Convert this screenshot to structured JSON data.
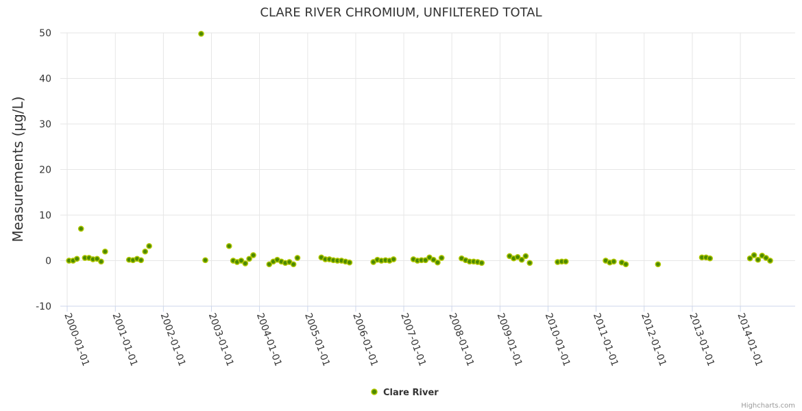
{
  "chart_data": {
    "type": "scatter",
    "title": "CLARE RIVER CHROMIUM, UNFILTERED TOTAL",
    "xlabel": "",
    "ylabel": "Measurements (µg/L)",
    "ylim": [
      -10,
      50
    ],
    "yticks": [
      50,
      40,
      30,
      20,
      10,
      0,
      -10
    ],
    "xlim": [
      "2000-01-01",
      "2014-12-31"
    ],
    "xticks": [
      "2000-01-01",
      "2001-01-01",
      "2002-01-01",
      "2003-01-01",
      "2004-01-01",
      "2005-01-01",
      "2006-01-01",
      "2007-01-01",
      "2008-01-01",
      "2009-01-01",
      "2010-01-01",
      "2011-01-01",
      "2012-01-01",
      "2013-01-01",
      "2014-01-01"
    ],
    "grid": true,
    "legend_position": "bottom-center",
    "series": [
      {
        "name": "Clare River",
        "color": "#4d8a00",
        "points": [
          {
            "x": "2000-01-15",
            "y": 0
          },
          {
            "x": "2000-02-15",
            "y": 0
          },
          {
            "x": "2000-03-15",
            "y": 0.4
          },
          {
            "x": "2000-04-15",
            "y": 7
          },
          {
            "x": "2000-05-15",
            "y": 0.6
          },
          {
            "x": "2000-06-15",
            "y": 0.6
          },
          {
            "x": "2000-07-15",
            "y": 0.3
          },
          {
            "x": "2000-08-15",
            "y": 0.4
          },
          {
            "x": "2000-09-15",
            "y": -0.2
          },
          {
            "x": "2000-10-15",
            "y": 2
          },
          {
            "x": "2001-04-15",
            "y": 0.2
          },
          {
            "x": "2001-05-15",
            "y": 0.1
          },
          {
            "x": "2001-06-15",
            "y": 0.4
          },
          {
            "x": "2001-07-15",
            "y": 0.1
          },
          {
            "x": "2001-08-15",
            "y": 2
          },
          {
            "x": "2001-09-15",
            "y": 3.2
          },
          {
            "x": "2002-10-15",
            "y": 49.8
          },
          {
            "x": "2002-11-15",
            "y": 0.1
          },
          {
            "x": "2003-05-15",
            "y": 3.2
          },
          {
            "x": "2003-06-15",
            "y": 0
          },
          {
            "x": "2003-07-15",
            "y": -0.3
          },
          {
            "x": "2003-08-15",
            "y": 0
          },
          {
            "x": "2003-09-15",
            "y": -0.6
          },
          {
            "x": "2003-10-15",
            "y": 0.4
          },
          {
            "x": "2003-11-15",
            "y": 1.2
          },
          {
            "x": "2004-03-15",
            "y": -0.8
          },
          {
            "x": "2004-04-15",
            "y": -0.2
          },
          {
            "x": "2004-05-15",
            "y": 0.2
          },
          {
            "x": "2004-06-15",
            "y": -0.2
          },
          {
            "x": "2004-07-15",
            "y": -0.5
          },
          {
            "x": "2004-08-15",
            "y": -0.3
          },
          {
            "x": "2004-09-15",
            "y": -0.8
          },
          {
            "x": "2004-10-15",
            "y": 0.6
          },
          {
            "x": "2005-04-15",
            "y": 0.7
          },
          {
            "x": "2005-05-15",
            "y": 0.3
          },
          {
            "x": "2005-06-15",
            "y": 0.3
          },
          {
            "x": "2005-07-15",
            "y": 0.1
          },
          {
            "x": "2005-08-15",
            "y": 0
          },
          {
            "x": "2005-09-15",
            "y": 0
          },
          {
            "x": "2005-10-15",
            "y": -0.2
          },
          {
            "x": "2005-11-15",
            "y": -0.4
          },
          {
            "x": "2006-05-15",
            "y": -0.3
          },
          {
            "x": "2006-06-15",
            "y": 0.2
          },
          {
            "x": "2006-07-15",
            "y": 0
          },
          {
            "x": "2006-08-15",
            "y": 0.1
          },
          {
            "x": "2006-09-15",
            "y": 0
          },
          {
            "x": "2006-10-15",
            "y": 0.3
          },
          {
            "x": "2007-03-15",
            "y": 0.3
          },
          {
            "x": "2007-04-15",
            "y": 0
          },
          {
            "x": "2007-05-15",
            "y": 0.1
          },
          {
            "x": "2007-06-15",
            "y": 0.1
          },
          {
            "x": "2007-07-15",
            "y": 0.7
          },
          {
            "x": "2007-08-15",
            "y": 0.2
          },
          {
            "x": "2007-09-15",
            "y": -0.4
          },
          {
            "x": "2007-10-15",
            "y": 0.6
          },
          {
            "x": "2008-03-15",
            "y": 0.5
          },
          {
            "x": "2008-04-15",
            "y": 0.1
          },
          {
            "x": "2008-05-15",
            "y": -0.2
          },
          {
            "x": "2008-06-15",
            "y": -0.2
          },
          {
            "x": "2008-07-15",
            "y": -0.3
          },
          {
            "x": "2008-08-15",
            "y": -0.5
          },
          {
            "x": "2009-03-15",
            "y": 1
          },
          {
            "x": "2009-04-15",
            "y": 0.5
          },
          {
            "x": "2009-05-15",
            "y": 0.8
          },
          {
            "x": "2009-06-15",
            "y": 0.2
          },
          {
            "x": "2009-07-15",
            "y": 1
          },
          {
            "x": "2009-08-15",
            "y": -0.5
          },
          {
            "x": "2010-03-15",
            "y": -0.3
          },
          {
            "x": "2010-04-15",
            "y": -0.2
          },
          {
            "x": "2010-05-15",
            "y": -0.2
          },
          {
            "x": "2011-03-15",
            "y": 0
          },
          {
            "x": "2011-04-15",
            "y": -0.4
          },
          {
            "x": "2011-05-15",
            "y": -0.2
          },
          {
            "x": "2011-07-15",
            "y": -0.4
          },
          {
            "x": "2011-08-15",
            "y": -0.8
          },
          {
            "x": "2012-04-15",
            "y": -0.8
          },
          {
            "x": "2013-03-15",
            "y": 0.7
          },
          {
            "x": "2013-04-15",
            "y": 0.7
          },
          {
            "x": "2013-05-15",
            "y": 0.5
          },
          {
            "x": "2014-03-15",
            "y": 0.5
          },
          {
            "x": "2014-04-15",
            "y": 1.2
          },
          {
            "x": "2014-05-15",
            "y": 0.2
          },
          {
            "x": "2014-06-15",
            "y": 1.1
          },
          {
            "x": "2014-07-15",
            "y": 0.6
          },
          {
            "x": "2014-08-15",
            "y": 0
          }
        ]
      }
    ]
  },
  "credit": "Highcharts.com"
}
